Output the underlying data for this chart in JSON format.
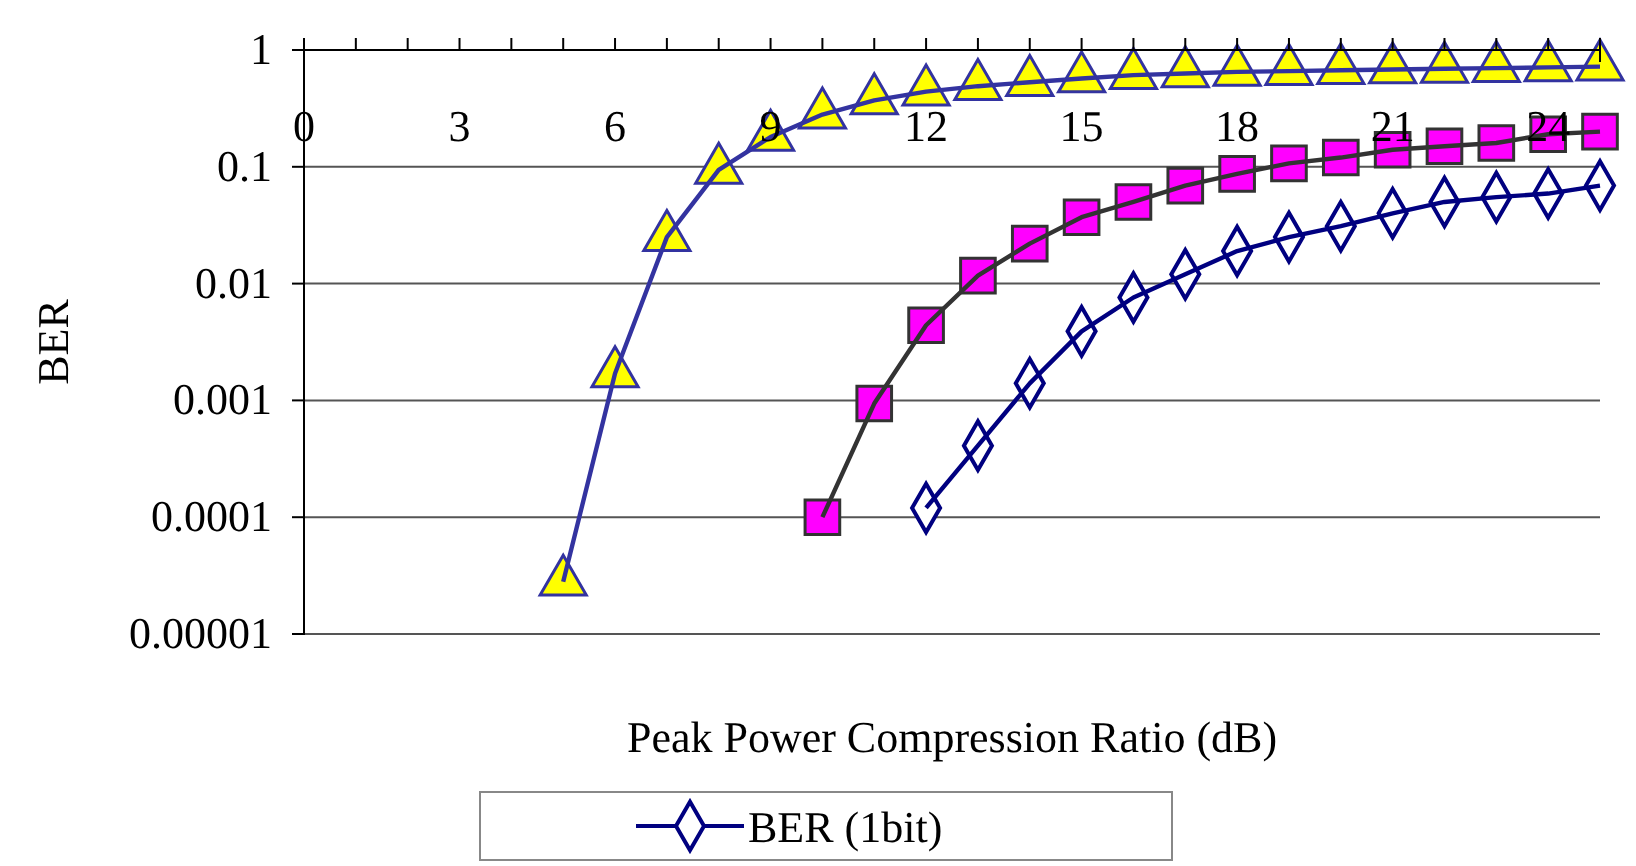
{
  "chart_data": {
    "type": "line",
    "xlabel": "Peak Power Compression Ratio (dB)",
    "ylabel": "BER",
    "log": "y",
    "grid": "y",
    "legend": "bottom",
    "xlim": [
      0,
      25
    ],
    "ylim": [
      1e-05,
      1
    ],
    "xticks": [
      0,
      {
        "value": 1,
        "label": null
      },
      {
        "value": 2,
        "label": null
      },
      3,
      {
        "value": 4,
        "label": null
      },
      {
        "value": 5,
        "label": null
      },
      6,
      {
        "value": 7,
        "label": null
      },
      {
        "value": 8,
        "label": null
      },
      9,
      {
        "value": 10,
        "label": null
      },
      {
        "value": 11,
        "label": null
      },
      12,
      {
        "value": 13,
        "label": null
      },
      {
        "value": 14,
        "label": null
      },
      15,
      {
        "value": 16,
        "label": null
      },
      {
        "value": 17,
        "label": null
      },
      18,
      {
        "value": 19,
        "label": null
      },
      {
        "value": 20,
        "label": null
      },
      21,
      {
        "value": 22,
        "label": null
      },
      {
        "value": 23,
        "label": null
      },
      24,
      {
        "value": 25,
        "label": null
      }
    ],
    "yticks": [
      {
        "value": 1e-05,
        "label": "0.00001"
      },
      {
        "value": 0.0001,
        "label": "0.0001"
      },
      {
        "value": 0.001,
        "label": "0.001"
      },
      {
        "value": 0.01,
        "label": "0.01"
      },
      {
        "value": 0.1,
        "label": "0.1"
      },
      {
        "value": 1,
        "label": "1"
      }
    ],
    "series": [
      {
        "color": "#3333a0",
        "colors": [
          "#ffff00",
          "#ffff00",
          "#ffff00",
          "#ffff00",
          "#ffff00",
          "#ffff00",
          "#ffff00",
          "#ffff00",
          "#ffff00",
          "#ffff00",
          "#ffff00",
          "#ffff00",
          "#ffff00",
          "#ffff00",
          "#ffff00",
          "#ffff00",
          "#ffff00",
          "#ffff00",
          "#ffff00",
          "#ffff00",
          "#ffff00"
        ],
        "marker": "triangle",
        "x": [
          5,
          6,
          7,
          8,
          9,
          10,
          11,
          12,
          13,
          14,
          15,
          16,
          17,
          18,
          19,
          20,
          21,
          22,
          23,
          24,
          25
        ],
        "values": [
          2.8e-05,
          0.0017,
          0.025,
          0.094,
          0.18,
          0.28,
          0.37,
          0.44,
          0.49,
          0.53,
          0.57,
          0.61,
          0.63,
          0.65,
          0.66,
          0.67,
          0.68,
          0.69,
          0.7,
          0.71,
          0.72
        ]
      },
      {
        "color": "#333333",
        "colors": [
          "#ff00ff",
          "#ff00ff",
          "#ff00ff",
          "#ff00ff",
          "#ff00ff",
          "#ff00ff",
          "#ff00ff",
          "#ff00ff",
          "#ff00ff",
          "#ff00ff",
          "#ff00ff",
          "#ff00ff",
          "#ff00ff",
          "#ff00ff",
          "#ff00ff",
          "#ff00ff"
        ],
        "marker": "square",
        "x": [
          10,
          11,
          12,
          13,
          14,
          15,
          16,
          17,
          18,
          19,
          20,
          21,
          22,
          23,
          24,
          25
        ],
        "values": [
          0.0001,
          0.00094,
          0.0044,
          0.0117,
          0.022,
          0.037,
          0.05,
          0.069,
          0.087,
          0.107,
          0.12,
          0.14,
          0.15,
          0.16,
          0.19,
          0.2
        ]
      },
      {
        "name": "BER (1bit)",
        "color": "#000080",
        "marker": "diamond",
        "x": [
          12,
          13,
          14,
          15,
          16,
          17,
          18,
          19,
          20,
          21,
          22,
          23,
          24,
          25
        ],
        "values": [
          0.00012,
          0.00041,
          0.0014,
          0.0039,
          0.0076,
          0.012,
          0.019,
          0.025,
          0.031,
          0.04,
          0.05,
          0.055,
          0.059,
          0.069
        ]
      }
    ]
  }
}
